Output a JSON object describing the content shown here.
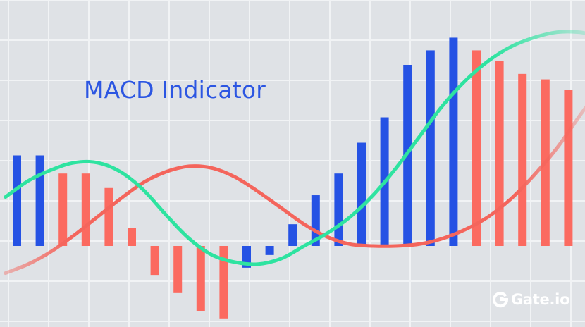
{
  "chart_data": {
    "type": "bar",
    "title": "MACD Indicator",
    "xlabel": "",
    "ylabel": "",
    "ylim": [
      -5,
      12
    ],
    "grid": true,
    "legend": "none",
    "histogram": {
      "name": "",
      "values": [
        5,
        5,
        4,
        4,
        3.2,
        1,
        -1.6,
        -2.6,
        -3.6,
        -4,
        -1.2,
        -0.5,
        1.2,
        2.8,
        4,
        5.7,
        7.1,
        10,
        10.8,
        11.5,
        10.8,
        10.2,
        9.5,
        9.2,
        8.6
      ],
      "colors": [
        "blue",
        "blue",
        "red",
        "red",
        "red",
        "red",
        "red",
        "red",
        "red",
        "red",
        "blue",
        "blue",
        "blue",
        "blue",
        "blue",
        "blue",
        "blue",
        "blue",
        "blue",
        "blue",
        "red",
        "red",
        "red",
        "red",
        "red"
      ]
    },
    "series": [
      {
        "type": "line",
        "color_key": "macd",
        "x": [
          -0.5,
          0.5,
          1.5,
          2.5,
          3.5,
          4.5,
          5.5,
          6.5,
          7.5,
          8.5,
          9.5,
          10.5,
          11.5,
          12.5,
          13.5,
          14.5,
          15.5,
          16.5,
          17.5,
          18.5,
          19.5,
          20.5,
          21.5,
          22.5,
          23.5,
          24.5,
          25.2
        ],
        "values": [
          2.7,
          3.6,
          4.2,
          4.6,
          4.6,
          4.1,
          3.1,
          1.7,
          0.4,
          -0.5,
          -0.9,
          -1,
          -0.7,
          0,
          0.7,
          1.6,
          2.8,
          4.3,
          6,
          7.7,
          9.1,
          10.2,
          11,
          11.5,
          11.8,
          11.8,
          11.6
        ]
      },
      {
        "type": "line",
        "color_key": "signal",
        "x": [
          -0.5,
          0.5,
          1.5,
          2.5,
          3.5,
          4.5,
          5.5,
          6.5,
          7.5,
          8.5,
          9.5,
          10.5,
          11.5,
          12.5,
          13.5,
          14.5,
          15.5,
          16.5,
          17.5,
          18.5,
          19.5,
          20.5,
          21.5,
          22.5,
          23.5,
          24.5,
          25.2
        ],
        "values": [
          -1.5,
          -1,
          -0.3,
          0.6,
          1.6,
          2.6,
          3.5,
          4.1,
          4.4,
          4.3,
          3.8,
          3,
          2.1,
          1.2,
          0.5,
          0.1,
          0,
          0,
          0.1,
          0.4,
          0.9,
          1.6,
          2.6,
          3.9,
          5.4,
          7.2,
          8.4
        ]
      }
    ],
    "colors": {
      "blue": "#2552e4",
      "red": "#fb6a60",
      "macd": "#2ee3a0",
      "signal": "#f4655c",
      "grid": "#f1f3f5",
      "background": "#dfe2e6",
      "title": "#2c56e2"
    }
  },
  "brand": {
    "text": "Gate.io",
    "icon": "gate-logo-icon",
    "color": "#ffffff"
  }
}
